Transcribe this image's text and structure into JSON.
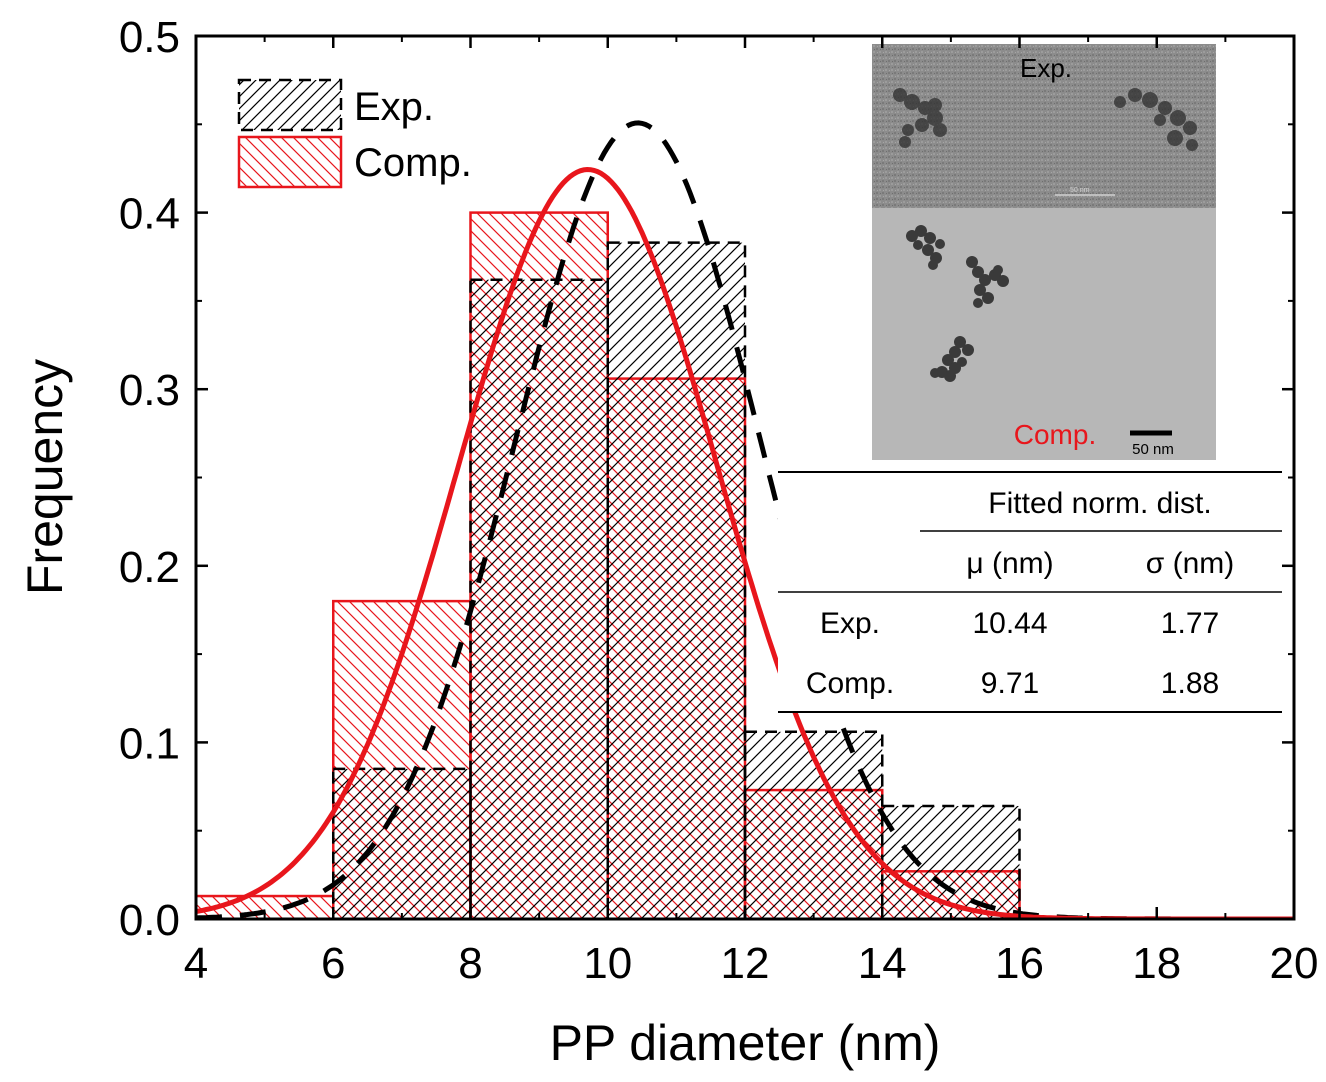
{
  "chart_data": {
    "type": "bar",
    "xlabel": "PP diameter (nm)",
    "ylabel": "Frequency",
    "xlim": [
      4,
      20
    ],
    "ylim": [
      0,
      0.5
    ],
    "x_ticks": [
      "4",
      "6",
      "8",
      "10",
      "12",
      "14",
      "16",
      "18",
      "20"
    ],
    "y_ticks": [
      "0.0",
      "0.1",
      "0.2",
      "0.3",
      "0.4",
      "0.5"
    ],
    "bin_edges": [
      4,
      6,
      8,
      10,
      12,
      14,
      16
    ],
    "series": [
      {
        "name": "Exp.",
        "color": "#000000",
        "hatch": "forward-diagonal",
        "border": "dashed",
        "values": [
          0.0,
          0.085,
          0.362,
          0.383,
          0.106,
          0.064
        ],
        "fit": {
          "type": "normal",
          "mu": 10.44,
          "sigma": 1.77,
          "line": "dashed"
        }
      },
      {
        "name": "Comp.",
        "color": "#e8161c",
        "hatch": "back-diagonal",
        "border": "solid",
        "values": [
          0.013,
          0.18,
          0.4,
          0.306,
          0.073,
          0.027
        ],
        "fit": {
          "type": "normal",
          "mu": 9.71,
          "sigma": 1.88,
          "line": "solid"
        }
      }
    ],
    "legend_position": "top-left",
    "inset_image": {
      "top_label": "Exp.",
      "top_scale_text": "50 nm",
      "bottom_label": "Comp.",
      "bottom_scale_text": "50 nm"
    },
    "fit_table": {
      "title": "Fitted norm. dist.",
      "columns": [
        "μ (nm)",
        "σ (nm)"
      ],
      "rows": [
        {
          "label": "Exp.",
          "mu": "10.44",
          "sigma": "1.77"
        },
        {
          "label": "Comp.",
          "mu": "9.71",
          "sigma": "1.88"
        }
      ]
    }
  }
}
